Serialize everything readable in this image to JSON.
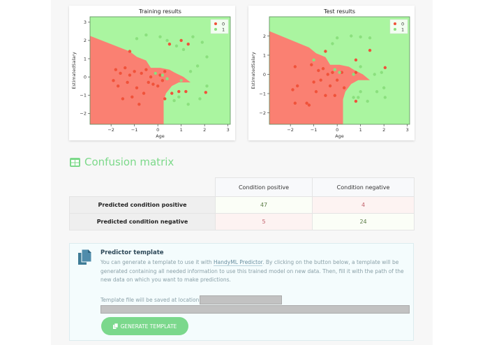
{
  "chart_data": [
    {
      "type": "scatter",
      "title": "Training results",
      "xlabel": "Age",
      "ylabel": "EstimatedSalary",
      "xlim": [
        -2.9,
        3.1
      ],
      "ylim": [
        -2.6,
        3.3
      ],
      "xticks": [
        "−2",
        "−1",
        "0",
        "1",
        "2",
        "3"
      ],
      "yticks": [
        "−2",
        "−1",
        "0",
        "1",
        "2",
        "3"
      ],
      "grid": false,
      "legend": {
        "position": "upper right",
        "entries": [
          "0",
          "1"
        ]
      },
      "region_colors": {
        "0": "#fa8072",
        "1": "#aaf5a0"
      },
      "series": [
        {
          "name": "0",
          "color": "#f0523a",
          "points": [
            [
              -1.9,
              -0.2
            ],
            [
              -1.8,
              0.4
            ],
            [
              -1.7,
              -0.5
            ],
            [
              -1.6,
              0.2
            ],
            [
              -1.5,
              -1.2
            ],
            [
              -1.4,
              0.5
            ],
            [
              -1.3,
              -0.3
            ],
            [
              -1.2,
              0.1
            ],
            [
              -1.1,
              -1.1
            ],
            [
              -1.0,
              0.3
            ],
            [
              -0.9,
              -0.6
            ],
            [
              -0.8,
              -1.5
            ],
            [
              -0.7,
              0.2
            ],
            [
              -0.6,
              -0.9
            ],
            [
              -0.5,
              0.4
            ],
            [
              -0.4,
              -0.3
            ],
            [
              -0.3,
              0.0
            ],
            [
              -0.2,
              -0.4
            ],
            [
              -0.1,
              0.2
            ],
            [
              0.0,
              -0.5
            ],
            [
              0.1,
              0.1
            ],
            [
              0.2,
              -0.2
            ],
            [
              0.3,
              0.3
            ],
            [
              0.5,
              1.8
            ],
            [
              1.0,
              2.0
            ],
            [
              1.3,
              1.8
            ],
            [
              -1.2,
              1.4
            ],
            [
              0.9,
              -0.8
            ],
            [
              1.2,
              -0.8
            ],
            [
              2.05,
              -0.85
            ],
            [
              0.6,
              -0.9
            ],
            [
              0.3,
              -1.2
            ]
          ]
        },
        {
          "name": "1",
          "color": "#8be07e",
          "points": [
            [
              -0.9,
              2.1
            ],
            [
              -0.5,
              2.3
            ],
            [
              0.1,
              2.2
            ],
            [
              0.4,
              2.0
            ],
            [
              0.8,
              1.7
            ],
            [
              1.1,
              1.5
            ],
            [
              1.5,
              2.2
            ],
            [
              1.9,
              1.9
            ],
            [
              2.1,
              1.1
            ],
            [
              1.7,
              0.6
            ],
            [
              1.4,
              0.3
            ],
            [
              1.0,
              -0.2
            ],
            [
              0.7,
              -1.3
            ],
            [
              0.9,
              -1.1
            ],
            [
              1.3,
              -1.5
            ],
            [
              1.8,
              -1.2
            ],
            [
              2.1,
              -0.5
            ],
            [
              -0.1,
              0.2
            ],
            [
              0.2,
              0.1
            ],
            [
              0.4,
              -0.1
            ]
          ]
        }
      ]
    },
    {
      "type": "scatter",
      "title": "Test results",
      "xlabel": "Age",
      "ylabel": "EstimatedSalary",
      "xlim": [
        -2.9,
        3.1
      ],
      "ylim": [
        -2.6,
        3.0
      ],
      "xticks": [
        "−2",
        "−1",
        "0",
        "1",
        "2",
        "3"
      ],
      "yticks": [
        "−2",
        "−1",
        "0",
        "1",
        "2"
      ],
      "grid": false,
      "legend": {
        "position": "upper right",
        "entries": [
          "0",
          "1"
        ]
      },
      "region_colors": {
        "0": "#fa8072",
        "1": "#aaf5a0"
      },
      "series": [
        {
          "name": "0",
          "color": "#f0523a",
          "points": [
            [
              -1.9,
              -0.8
            ],
            [
              -1.8,
              0.4
            ],
            [
              -1.7,
              -0.6
            ],
            [
              -1.8,
              -1.5
            ],
            [
              -1.3,
              -1.5
            ],
            [
              -1.2,
              -1.6
            ],
            [
              -1.1,
              0.5
            ],
            [
              -1.0,
              -0.4
            ],
            [
              -0.9,
              -0.9
            ],
            [
              -0.8,
              0.2
            ],
            [
              -0.7,
              -0.3
            ],
            [
              -0.6,
              0.3
            ],
            [
              -0.5,
              -1.1
            ],
            [
              -0.4,
              0.0
            ],
            [
              -0.3,
              -0.6
            ],
            [
              -0.2,
              0.1
            ],
            [
              -0.1,
              -1.1
            ],
            [
              0.0,
              -0.3
            ],
            [
              0.2,
              0.1
            ],
            [
              0.3,
              -0.7
            ],
            [
              -0.5,
              1.2
            ],
            [
              0.8,
              0.75
            ],
            [
              1.4,
              1.25
            ],
            [
              2.05,
              0.35
            ],
            [
              0.8,
              -1.4
            ],
            [
              0.8,
              0.1
            ]
          ]
        },
        {
          "name": "1",
          "color": "#8be07e",
          "points": [
            [
              -1.0,
              0.75
            ],
            [
              -0.2,
              1.6
            ],
            [
              0.0,
              1.9
            ],
            [
              0.6,
              2.0
            ],
            [
              1.0,
              1.95
            ],
            [
              1.4,
              1.9
            ],
            [
              1.0,
              0.4
            ],
            [
              1.6,
              0.0
            ],
            [
              1.9,
              0.1
            ],
            [
              2.0,
              -0.7
            ],
            [
              1.7,
              -0.9
            ],
            [
              2.05,
              -1.2
            ],
            [
              1.3,
              -1.4
            ],
            [
              0.9,
              -1.2
            ],
            [
              0.7,
              -1.2
            ],
            [
              1.0,
              -0.9
            ],
            [
              0.1,
              0.1
            ],
            [
              -0.1,
              0.25
            ],
            [
              0.7,
              0.0
            ]
          ]
        }
      ]
    }
  ],
  "confusion_matrix": {
    "title": "Confusion matrix",
    "columns": [
      "Condition positive",
      "Condition negative"
    ],
    "rows": [
      {
        "label": "Predicted condition positive",
        "values": [
          "47",
          "4"
        ]
      },
      {
        "label": "Predicted condition negative",
        "values": [
          "5",
          "24"
        ]
      }
    ]
  },
  "predictor": {
    "title": "Predictor template",
    "desc_before": "You can generate a template to use it with ",
    "link_text": "HandyML Predictor",
    "desc_after": ". By clicking on the button below, a template will be generated containing all needed information to use this trained model on new data. Then, fill it with the path of the new data on which you want to make predictions.",
    "save_label": "Template file will be saved at location",
    "button_label": "GENERATE TEMPLATE"
  },
  "colors": {
    "accent": "#7bd88c",
    "region0": "#fa8072",
    "region1": "#aaf5a0",
    "point0": "#f0523a",
    "point1": "#8be07e"
  }
}
